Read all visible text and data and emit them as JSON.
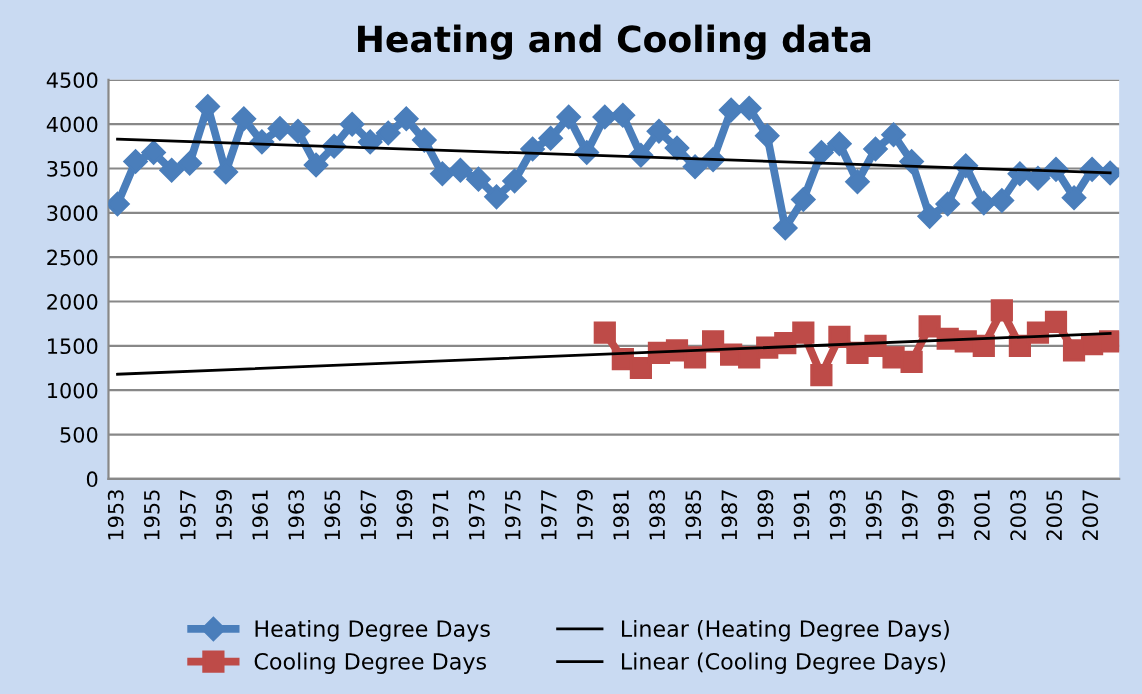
{
  "chart_data": {
    "type": "line",
    "title": "Heating and Cooling data",
    "x": [
      1953,
      1954,
      1955,
      1956,
      1957,
      1958,
      1959,
      1960,
      1961,
      1962,
      1963,
      1964,
      1965,
      1966,
      1967,
      1968,
      1969,
      1970,
      1971,
      1972,
      1973,
      1974,
      1975,
      1976,
      1977,
      1978,
      1979,
      1980,
      1981,
      1982,
      1983,
      1984,
      1985,
      1986,
      1987,
      1988,
      1989,
      1990,
      1991,
      1992,
      1993,
      1994,
      1995,
      1996,
      1997,
      1998,
      1999,
      2000,
      2001,
      2002,
      2003,
      2004,
      2005,
      2006,
      2007,
      2008
    ],
    "series": [
      {
        "name": "Heating Degree Days",
        "color": "#4a7ebb",
        "marker": "diamond",
        "values": [
          3100,
          3580,
          3680,
          3480,
          3560,
          4200,
          3460,
          4060,
          3800,
          3950,
          3920,
          3540,
          3750,
          4000,
          3800,
          3900,
          4060,
          3820,
          3440,
          3480,
          3380,
          3180,
          3360,
          3720,
          3840,
          4080,
          3680,
          4080,
          4100,
          3650,
          3920,
          3730,
          3520,
          3600,
          4160,
          4180,
          3870,
          2830,
          3150,
          3680,
          3780,
          3350,
          3720,
          3880,
          3580,
          2960,
          3100,
          3530,
          3110,
          3140,
          3440,
          3390,
          3490,
          3170,
          3490,
          3450
        ]
      },
      {
        "name": "Cooling Degree Days",
        "color": "#be4b48",
        "marker": "square",
        "x": [
          1980,
          1981,
          1982,
          1983,
          1984,
          1985,
          1986,
          1987,
          1988,
          1989,
          1990,
          1991,
          1992,
          1993,
          1994,
          1995,
          1996,
          1997,
          1998,
          1999,
          2000,
          2001,
          2002,
          2003,
          2004,
          2005,
          2006,
          2007,
          2008
        ],
        "values": [
          1650,
          1350,
          1250,
          1420,
          1450,
          1370,
          1550,
          1400,
          1370,
          1480,
          1530,
          1650,
          1170,
          1600,
          1420,
          1500,
          1370,
          1320,
          1720,
          1580,
          1550,
          1500,
          1900,
          1500,
          1650,
          1770,
          1450,
          1520,
          1550
        ]
      },
      {
        "name": "Linear (Heating Degree Days)",
        "color": "#000000",
        "marker": "none",
        "x": [
          1953,
          2008
        ],
        "values": [
          3830,
          3450
        ]
      },
      {
        "name": "Linear (Cooling Degree Days)",
        "color": "#000000",
        "marker": "none",
        "x": [
          1953,
          2008
        ],
        "values": [
          1180,
          1640
        ]
      }
    ],
    "xlim": [
      1952.5,
      2008.5
    ],
    "xticks": [
      1953,
      1955,
      1957,
      1959,
      1961,
      1963,
      1965,
      1967,
      1969,
      1971,
      1973,
      1975,
      1977,
      1979,
      1981,
      1983,
      1985,
      1987,
      1989,
      1991,
      1993,
      1995,
      1997,
      1999,
      2001,
      2003,
      2005,
      2007
    ],
    "ylim": [
      0,
      4500
    ],
    "yticks": [
      0,
      500,
      1000,
      1500,
      2000,
      2500,
      3000,
      3500,
      4000,
      4500
    ],
    "grid": "y",
    "legend": "bottom"
  }
}
